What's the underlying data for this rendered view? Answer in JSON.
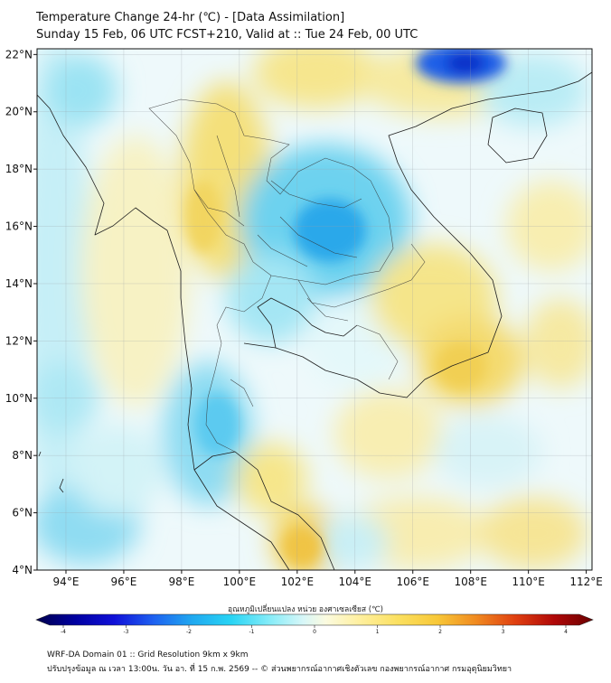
{
  "header": {
    "title": "Temperature Change 24-hr (℃) - [Data Assimilation]",
    "subtitle": "Sunday 15 Feb, 06 UTC FCST+210, Valid at :: Tue 24 Feb, 00 UTC"
  },
  "map": {
    "lon_labels": [
      "94°E",
      "96°E",
      "98°E",
      "100°E",
      "102°E",
      "104°E",
      "106°E",
      "108°E",
      "110°E",
      "112°E"
    ],
    "lat_labels": [
      "22°N",
      "20°N",
      "18°N",
      "16°N",
      "14°N",
      "12°N",
      "10°N",
      "8°N",
      "6°N",
      "4°N"
    ],
    "lon_range": [
      93,
      112.2
    ],
    "lat_range": [
      4,
      22.2
    ]
  },
  "colorbar": {
    "label": "อุณหภูมิเปลี่ยนแปลง หน่วย องศาเซลเซียส (℃)",
    "ticks": [
      "-4",
      "-3",
      "-2",
      "-1",
      "0",
      "1",
      "2",
      "3",
      "4"
    ],
    "range": [
      -4,
      4
    ],
    "colors": [
      "#00004d",
      "#0000a0",
      "#1010d8",
      "#1e60f0",
      "#20a8f0",
      "#28d4f4",
      "#86ecf8",
      "#d8f7f8",
      "#fbfbe0",
      "#fff0a0",
      "#fbe060",
      "#f8c838",
      "#f08a20",
      "#e04010",
      "#b00808",
      "#6a0000"
    ]
  },
  "footer": {
    "line1": "WRF-DA Domain 01 :: Grid Resolution 9km x 9km",
    "line2": "ปรับปรุงข้อมูล ณ เวลา 13:00น. วัน อา. ที่ 15 ก.พ. 2569 -- © ส่วนพยากรณ์อากาศเชิงตัวเลข กองพยากรณ์อากาศ กรมอุตุนิยมวิทยา"
  }
}
